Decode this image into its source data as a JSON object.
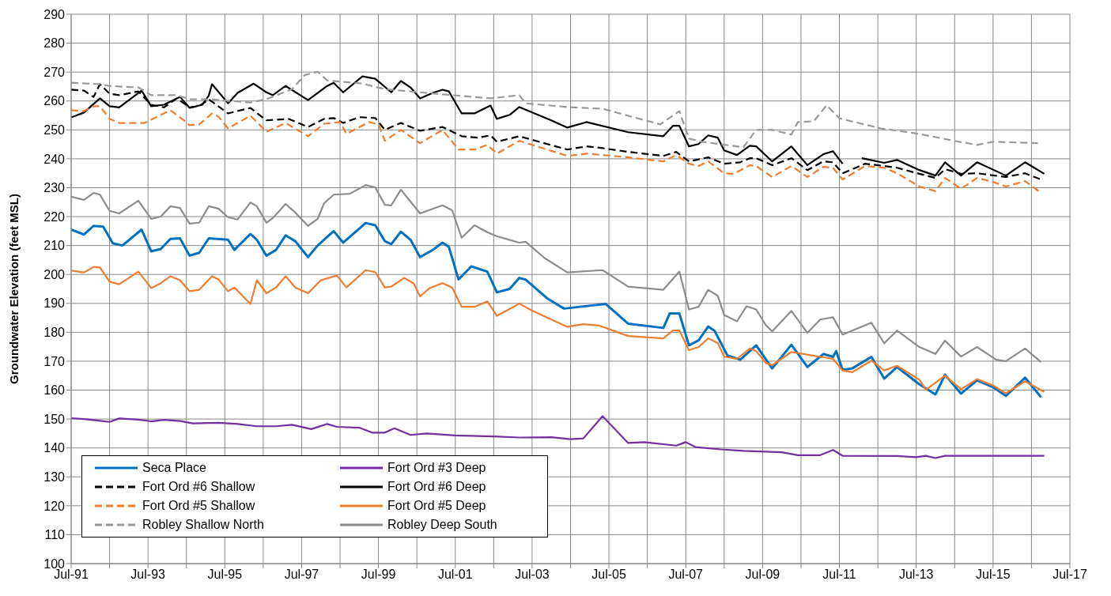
{
  "chart_data": {
    "type": "line",
    "ylabel": "Groundwater Elevation (feet MSL)",
    "xlim": [
      "1991-07",
      "2017-07"
    ],
    "xticks": [
      {
        "value": "1991-07",
        "label": "Jul-91"
      },
      {
        "value": "1992-07",
        "label": null
      },
      {
        "value": "1993-07",
        "label": "Jul-93"
      },
      {
        "value": "1994-07",
        "label": null
      },
      {
        "value": "1995-07",
        "label": "Jul-95"
      },
      {
        "value": "1996-07",
        "label": null
      },
      {
        "value": "1997-07",
        "label": "Jul-97"
      },
      {
        "value": "1998-07",
        "label": null
      },
      {
        "value": "1999-07",
        "label": "Jul-99"
      },
      {
        "value": "2000-07",
        "label": null
      },
      {
        "value": "2001-07",
        "label": "Jul-01"
      },
      {
        "value": "2002-07",
        "label": null
      },
      {
        "value": "2003-07",
        "label": "Jul-03"
      },
      {
        "value": "2004-07",
        "label": null
      },
      {
        "value": "2005-07",
        "label": "Jul-05"
      },
      {
        "value": "2006-07",
        "label": null
      },
      {
        "value": "2007-07",
        "label": "Jul-07"
      },
      {
        "value": "2008-07",
        "label": null
      },
      {
        "value": "2009-07",
        "label": "Jul-09"
      },
      {
        "value": "2010-07",
        "label": null
      },
      {
        "value": "2011-07",
        "label": "Jul-11"
      },
      {
        "value": "2012-07",
        "label": null
      },
      {
        "value": "2013-07",
        "label": "Jul-13"
      },
      {
        "value": "2014-07",
        "label": null
      },
      {
        "value": "2015-07",
        "label": "Jul-15"
      },
      {
        "value": "2016-07",
        "label": null
      },
      {
        "value": "2017-07",
        "label": "Jul-17"
      }
    ],
    "ylim": [
      100,
      290
    ],
    "yticks": [
      100,
      110,
      120,
      130,
      140,
      150,
      160,
      170,
      180,
      190,
      200,
      210,
      220,
      230,
      240,
      250,
      260,
      270,
      280,
      290
    ],
    "grid": true,
    "legend": "bottom left",
    "marker": "none",
    "series": [
      {
        "name": "Seca Place",
        "color": "#0070c0",
        "line_style": "solid",
        "x": [
          "1991-07",
          "1991-11",
          "1992-02",
          "1992-05",
          "1992-08",
          "1992-11",
          "1993-05",
          "1993-08",
          "1993-11",
          "1994-02",
          "1994-05",
          "1994-08",
          "1994-11",
          "1995-02",
          "1995-08",
          "1995-10",
          "1996-03",
          "1996-05",
          "1996-08",
          "1996-11",
          "1997-02",
          "1997-05",
          "1997-09",
          "1997-12",
          "1998-05",
          "1998-08",
          "1999-03",
          "1999-06",
          "1999-09",
          "1999-11",
          "2000-02",
          "2000-05",
          "2000-08",
          "2000-12",
          "2001-03",
          "2001-05",
          "2001-08",
          "2001-12",
          "2002-05",
          "2002-08",
          "2002-12",
          "2003-03",
          "2003-05",
          "2003-12",
          "2004-05",
          "2005-06",
          "2006-01",
          "2006-12",
          "2007-02",
          "2007-05",
          "2007-08",
          "2007-11",
          "2008-02",
          "2008-04",
          "2008-08",
          "2008-12",
          "2009-05",
          "2009-10",
          "2010-04",
          "2010-09",
          "2011-02",
          "2011-05",
          "2011-06",
          "2011-08",
          "2011-11",
          "2012-05",
          "2012-09",
          "2013-01",
          "2013-08",
          "2014-01",
          "2014-04",
          "2014-09",
          "2015-02",
          "2015-07",
          "2015-11",
          "2016-05",
          "2016-10"
        ],
        "values": [
          215.5,
          213.8,
          216.8,
          216.5,
          210.8,
          210,
          215.5,
          208,
          208.8,
          212.3,
          212.5,
          206.5,
          207.5,
          212.5,
          212,
          208.5,
          214,
          212,
          206.5,
          208.5,
          213.5,
          211.5,
          206,
          210,
          215,
          211,
          217.8,
          217,
          211.5,
          210.5,
          214.8,
          212,
          206,
          208.5,
          211,
          209.5,
          198.3,
          202.8,
          201,
          193.8,
          195,
          198.8,
          198.2,
          191.5,
          188.2,
          189.8,
          183,
          181.5,
          186.5,
          186.5,
          175.5,
          177.2,
          182,
          180.5,
          172,
          170.5,
          175.5,
          167.5,
          175.7,
          168,
          172.5,
          171.5,
          173.5,
          167,
          167.5,
          171.5,
          164,
          168,
          162,
          158.5,
          165.3,
          158.8,
          163.4,
          161,
          158,
          164.3,
          157.5
        ]
      },
      {
        "name": "Fort Ord #3 Deep",
        "color": "#7030a0",
        "line_style": "solid",
        "x": [
          "1991-07",
          "1991-11",
          "1992-03",
          "1992-07",
          "1992-10",
          "1993-04",
          "1993-08",
          "1993-12",
          "1994-05",
          "1994-09",
          "1995-05",
          "1995-11",
          "1996-05",
          "1996-11",
          "1997-04",
          "1997-10",
          "1998-03",
          "1998-06",
          "1999-01",
          "1999-05",
          "1999-09",
          "1999-12",
          "2000-05",
          "2000-10",
          "2001-07",
          "2002-07",
          "2003-03",
          "2004-01",
          "2004-07",
          "2004-11",
          "2005-05",
          "2006-01",
          "2006-06",
          "2007-04",
          "2007-07",
          "2007-10",
          "2008-06",
          "2009-01",
          "2010-01",
          "2010-06",
          "2011-01",
          "2011-05",
          "2011-08",
          "2013-01",
          "2013-07",
          "2013-10",
          "2014-01",
          "2014-04",
          "2016-11"
        ],
        "values": [
          150.3,
          150,
          149.5,
          149,
          150.2,
          149.8,
          149.2,
          149.7,
          149.3,
          148.5,
          148.7,
          148.3,
          147.5,
          147.5,
          148,
          146.5,
          148.3,
          147.3,
          147,
          145.3,
          145.3,
          146.8,
          144.5,
          145,
          144.3,
          144,
          143.6,
          143.7,
          143,
          143.3,
          151,
          141.7,
          142,
          140.8,
          142,
          140.3,
          139.5,
          139,
          138.5,
          137.5,
          137.5,
          139.3,
          137.3,
          137.2,
          136.8,
          137.3,
          136.5,
          137.3,
          137.3
        ]
      },
      {
        "name": "Fort Ord #6 Shallow",
        "color": "#000000",
        "line_style": "dashed",
        "x": [
          "1991-07",
          "1991-11",
          "1992-02",
          "1992-04",
          "1992-07",
          "1992-10",
          "1993-04",
          "1993-08",
          "1993-12",
          "1994-04",
          "1994-08",
          "1994-11",
          "1995-02",
          "1995-08",
          "1996-03",
          "1996-08",
          "1997-03",
          "1997-09",
          "1998-02",
          "1998-05",
          "1998-08",
          "1999-01",
          "1999-06",
          "1999-09",
          "2000-02",
          "2000-08",
          "2001-03",
          "2001-09",
          "2002-02",
          "2002-06",
          "2002-08",
          "2003-03",
          "2004-06",
          "2004-12",
          "2005-05",
          "2006-01",
          "2006-12",
          "2007-04",
          "2007-08",
          "2008-02",
          "2008-07",
          "2008-12",
          "2009-03",
          "2009-05",
          "2009-10",
          "2010-04",
          "2010-09",
          "2011-02",
          "2011-05",
          "2011-08",
          "2012-03",
          "2012-09",
          "2013-01",
          "2013-08",
          "2014-01",
          "2014-04",
          "2014-09",
          "2015-02",
          "2015-11",
          "2016-05",
          "2016-10"
        ],
        "values": [
          263.9,
          263.6,
          261.4,
          265.8,
          262.5,
          262,
          263.3,
          258.7,
          257.8,
          260.9,
          257.8,
          258.2,
          260.6,
          255.7,
          257.6,
          253.3,
          253.8,
          251,
          253.8,
          254.1,
          252.4,
          254.4,
          254.1,
          250,
          252.4,
          249.7,
          251,
          247.8,
          247.3,
          248.1,
          245.9,
          247.8,
          243.2,
          244.3,
          243.7,
          242.4,
          241,
          242.4,
          239.1,
          240.5,
          238.3,
          238.8,
          240.2,
          240.2,
          237.8,
          240.2,
          236.1,
          239.1,
          238.8,
          235,
          238.3,
          237.5,
          236.9,
          234.8,
          233.4,
          236.4,
          234.8,
          235,
          233.7,
          235,
          232.8
        ]
      },
      {
        "name": "Fort Ord #6 Deep",
        "color": "#000000",
        "line_style": "solid",
        "x": [
          "1991-07",
          "1991-11",
          "1992-04",
          "1992-07",
          "1992-10",
          "1993-05",
          "1993-08",
          "1993-12",
          "1994-05",
          "1994-08",
          "1994-12",
          "1995-02",
          "1995-03",
          "1995-08",
          "1995-11",
          "1996-04",
          "1996-08",
          "1996-10",
          "1997-02",
          "1997-09",
          "1998-03",
          "1998-05",
          "1998-08",
          "1999-02",
          "1999-06",
          "1999-11",
          "2000-02",
          "2000-05",
          "2000-08",
          "2000-12",
          "2001-03",
          "2001-05",
          "2001-09",
          "2002-01",
          "2002-06",
          "2002-08",
          "2002-12",
          "2003-03",
          "2004-01",
          "2004-06",
          "2004-12",
          "2006-01",
          "2006-12",
          "2007-03",
          "2007-05",
          "2007-08",
          "2007-11",
          "2008-02",
          "2008-05",
          "2008-07",
          "2008-11",
          "2009-03",
          "2009-05",
          "2009-10",
          "2010-04",
          "2010-09",
          "2011-02",
          "2011-05",
          "2011-08",
          "2011-10",
          "2012-02",
          "2012-09",
          "2013-01",
          "2013-08",
          "2014-01",
          "2014-04",
          "2014-09",
          "2015-02",
          "2015-11",
          "2016-05",
          "2016-11"
        ],
        "values": [
          254.3,
          256,
          260.9,
          258.2,
          257.8,
          263.6,
          258.2,
          258.7,
          261.4,
          257.6,
          258.7,
          261.9,
          265.8,
          259.2,
          262.8,
          266,
          263,
          262,
          265.2,
          260.3,
          265.2,
          266.3,
          263,
          268.5,
          267.7,
          263,
          266.9,
          264.7,
          260.9,
          262.8,
          263.9,
          263.3,
          255.7,
          255.7,
          258.4,
          253.8,
          255.2,
          257.9,
          253.3,
          250.8,
          252.7,
          249.2,
          247.8,
          251.4,
          251.4,
          244.3,
          245.1,
          248.1,
          247.3,
          242.9,
          241.3,
          244.5,
          244.3,
          239.1,
          244.3,
          237.8,
          241.6,
          242.6,
          238.3,
          null,
          240.2,
          238.6,
          239.6,
          236.1,
          234.2,
          238.8,
          234.2,
          238.8,
          234.2,
          238.8,
          234.8
        ]
      },
      {
        "name": "Fort Ord #5 Shallow",
        "color": "#ed7d31",
        "line_style": "dashed",
        "x": [
          "1991-07",
          "1991-11",
          "1992-02",
          "1992-04",
          "1992-07",
          "1992-10",
          "1993-06",
          "1993-10",
          "1994-02",
          "1994-06",
          "1994-08",
          "1994-11",
          "1995-03",
          "1995-05",
          "1995-08",
          "1996-03",
          "1996-08",
          "1997-02",
          "1997-09",
          "1998-02",
          "1998-07",
          "1998-09",
          "1999-04",
          "1999-07",
          "1999-09",
          "2000-02",
          "2000-08",
          "2001-03",
          "2001-08",
          "2002-01",
          "2002-05",
          "2002-08",
          "2003-03",
          "2004-06",
          "2004-12",
          "2006-01",
          "2006-12",
          "2007-04",
          "2007-08",
          "2007-11",
          "2008-02",
          "2008-07",
          "2008-10",
          "2009-03",
          "2009-05",
          "2009-10",
          "2010-04",
          "2010-09",
          "2011-02",
          "2011-05",
          "2011-08",
          "2012-03",
          "2012-09",
          "2013-01",
          "2013-08",
          "2014-01",
          "2014-04",
          "2014-09",
          "2015-02",
          "2015-07",
          "2015-11",
          "2016-05",
          "2016-10"
        ],
        "values": [
          256.8,
          256.5,
          258.2,
          258.2,
          253.8,
          252.4,
          252.4,
          254.6,
          256.8,
          253.5,
          251.6,
          251.9,
          255.7,
          254.6,
          250.5,
          254.9,
          249.4,
          252.4,
          247.8,
          252.1,
          252.7,
          248.6,
          252.7,
          251.9,
          246.2,
          250,
          245.4,
          250,
          243.2,
          243.2,
          244.8,
          241.8,
          246.2,
          241,
          241.8,
          240.5,
          239.1,
          241.3,
          238.3,
          237.5,
          239.1,
          235,
          234.8,
          237.8,
          237.5,
          233.7,
          237.5,
          233.7,
          237.2,
          236.9,
          232.8,
          237.5,
          236.9,
          235,
          230.4,
          228.8,
          233.4,
          229.6,
          233.4,
          232,
          230.4,
          232.3,
          228.2
        ]
      },
      {
        "name": "Fort Ord #5 Deep",
        "color": "#ed7d31",
        "line_style": "solid",
        "x": [
          "1991-07",
          "1991-11",
          "1992-02",
          "1992-04",
          "1992-07",
          "1992-10",
          "1993-04",
          "1993-08",
          "1993-11",
          "1994-02",
          "1994-05",
          "1994-08",
          "1994-11",
          "1995-03",
          "1995-05",
          "1995-08",
          "1995-10",
          "1996-03",
          "1996-05",
          "1996-08",
          "1996-11",
          "1997-02",
          "1997-05",
          "1997-09",
          "1998-01",
          "1998-06",
          "1998-09",
          "1999-03",
          "1999-06",
          "1999-09",
          "1999-11",
          "2000-03",
          "2000-06",
          "2000-08",
          "2000-11",
          "2001-03",
          "2001-06",
          "2001-09",
          "2002-01",
          "2002-05",
          "2002-08",
          "2002-11",
          "2003-03",
          "2003-07",
          "2004-06",
          "2004-11",
          "2005-04",
          "2006-01",
          "2006-12",
          "2007-03",
          "2007-05",
          "2007-08",
          "2007-11",
          "2008-02",
          "2008-05",
          "2008-07",
          "2008-11",
          "2009-03",
          "2009-05",
          "2009-08",
          "2009-10",
          "2010-04",
          "2011-05",
          "2011-08",
          "2011-11",
          "2012-05",
          "2012-09",
          "2013-01",
          "2013-08",
          "2013-10",
          "2014-04",
          "2014-09",
          "2015-02",
          "2015-07",
          "2015-11",
          "2016-05",
          "2016-11"
        ],
        "values": [
          201.3,
          200.7,
          202.6,
          202.4,
          197.5,
          196.6,
          201,
          195.3,
          197,
          199.4,
          198,
          194.2,
          194.7,
          199.4,
          198.3,
          194.2,
          195.5,
          189.8,
          198,
          193.5,
          195.5,
          199.4,
          195.5,
          193.5,
          198,
          199.6,
          195.5,
          201.5,
          200.8,
          195.5,
          195.8,
          198.8,
          196.9,
          192.4,
          195.3,
          197,
          195.5,
          188.8,
          188.8,
          190.7,
          185.7,
          187.5,
          189.9,
          187.5,
          181.9,
          182.8,
          182.3,
          178.7,
          177.9,
          180.6,
          180.6,
          173.8,
          174.9,
          177.9,
          176.3,
          171.6,
          170.8,
          174.4,
          173.5,
          169.4,
          168.6,
          173.2,
          170.8,
          166.8,
          166.2,
          170.2,
          166.8,
          168.4,
          163.6,
          160.1,
          165,
          160.3,
          163.8,
          161.6,
          158.9,
          163,
          159.4
        ]
      },
      {
        "name": "Robley Shallow North",
        "color": "#999999",
        "line_style": "dashed",
        "x": [
          "1991-07",
          "1992-04",
          "1992-07",
          "1993-04",
          "1993-08",
          "1994-04",
          "1994-08",
          "1995-02",
          "1996-03",
          "1996-08",
          "1997-04",
          "1997-08",
          "1997-12",
          "1998-03",
          "1999-02",
          "1999-09",
          "2000-08",
          "2001-04",
          "2002-06",
          "2003-03",
          "2003-05",
          "2004-06",
          "2005-05",
          "2006-11",
          "2007-05",
          "2007-08",
          "2007-12",
          "2009-01",
          "2009-05",
          "2009-10",
          "2010-04",
          "2010-06",
          "2010-11",
          "2011-03",
          "2011-07",
          "2012-08",
          "2013-08",
          "2014-07",
          "2015-02",
          "2015-07",
          "2016-09"
        ],
        "values": [
          266.3,
          265.8,
          265.2,
          264.7,
          262,
          262,
          260.6,
          260.6,
          259.5,
          260.6,
          264.1,
          269,
          270.1,
          267.1,
          266,
          264.1,
          263,
          262.2,
          260.9,
          262,
          259.2,
          257.9,
          257.3,
          251.9,
          256.5,
          247,
          245.9,
          244,
          250,
          250,
          248.4,
          252.7,
          253,
          258.5,
          254,
          250.5,
          248.6,
          246.2,
          244.8,
          245.9,
          245.4
        ]
      },
      {
        "name": "Robley Deep South",
        "color": "#8c8c8c",
        "line_style": "solid",
        "x": [
          "1991-07",
          "1991-11",
          "1992-02",
          "1992-04",
          "1992-07",
          "1992-10",
          "1993-04",
          "1993-08",
          "1993-11",
          "1994-02",
          "1994-05",
          "1994-08",
          "1994-11",
          "1995-02",
          "1995-05",
          "1995-08",
          "1995-11",
          "1996-03",
          "1996-05",
          "1996-08",
          "1996-10",
          "1997-02",
          "1997-05",
          "1997-09",
          "1997-12",
          "1998-02",
          "1998-05",
          "1998-10",
          "1999-03",
          "1999-06",
          "1999-09",
          "1999-11",
          "2000-02",
          "2000-05",
          "2000-08",
          "2001-03",
          "2001-06",
          "2001-09",
          "2002-01",
          "2002-05",
          "2002-08",
          "2003-03",
          "2003-05",
          "2003-11",
          "2004-06",
          "2005-05",
          "2006-01",
          "2006-12",
          "2007-05",
          "2007-08",
          "2007-11",
          "2008-02",
          "2008-05",
          "2008-07",
          "2008-11",
          "2009-02",
          "2009-05",
          "2009-08",
          "2009-10",
          "2010-04",
          "2010-09",
          "2011-01",
          "2011-05",
          "2011-08",
          "2012-05",
          "2012-09",
          "2013-01",
          "2013-08",
          "2014-01",
          "2014-04",
          "2014-09",
          "2015-02",
          "2015-08",
          "2015-11",
          "2016-05",
          "2016-10"
        ],
        "values": [
          226.9,
          225.8,
          228.2,
          227.6,
          222,
          221.1,
          225.5,
          219.2,
          220,
          223.6,
          223,
          217.6,
          217.9,
          223.6,
          222.8,
          219.8,
          219,
          224.9,
          223.6,
          217.9,
          219.5,
          224.4,
          221.4,
          216.8,
          219.2,
          224.6,
          227.6,
          227.9,
          230.9,
          230.1,
          224.1,
          223.9,
          229.3,
          225.2,
          221.1,
          223.9,
          222.2,
          212.7,
          217,
          214.6,
          213.2,
          211,
          211.3,
          205.6,
          200.7,
          201.5,
          195.8,
          194.7,
          201,
          187.9,
          188.8,
          194.7,
          192.6,
          186,
          183.8,
          189,
          187.9,
          182.5,
          180.3,
          187.4,
          179.8,
          184.4,
          185.2,
          179.2,
          183.3,
          176.2,
          180.6,
          174.9,
          172.5,
          177.1,
          171.6,
          174.9,
          170.5,
          170,
          174.4,
          169.7
        ]
      }
    ]
  }
}
